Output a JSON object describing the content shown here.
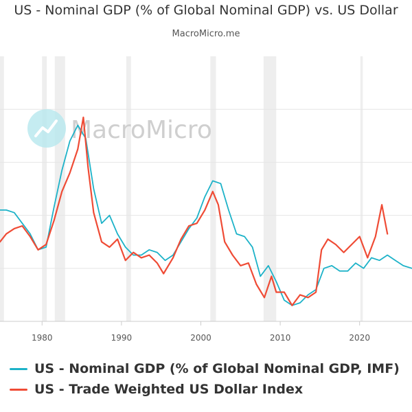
{
  "header": {
    "title": "US - Nominal GDP (% of Global Nominal GDP) vs. US Dollar",
    "subtitle": "MacroMicro.me"
  },
  "watermark": {
    "text": "MacroMicro"
  },
  "legend": {
    "items": [
      {
        "label": "US - Nominal GDP (% of Global Nominal GDP, IMF)",
        "color": "#1cb2c8"
      },
      {
        "label": "US - Trade Weighted US Dollar Index",
        "color": "#ef4b35"
      }
    ]
  },
  "chart_data": {
    "type": "line",
    "title": "US - Nominal GDP (% of Global Nominal GDP) vs. US Dollar",
    "x_ticks": [
      1980,
      1990,
      2000,
      2010,
      2020
    ],
    "x_range": [
      1974.7,
      2026.6
    ],
    "y_range": [
      0,
      1
    ],
    "y_axis_labels_visible": false,
    "grid": true,
    "legend_position": "bottom",
    "recession_shading": [
      [
        1973.9,
        1975.2
      ],
      [
        1980.0,
        1980.6
      ],
      [
        1981.6,
        1982.9
      ],
      [
        1990.6,
        1991.2
      ],
      [
        2001.2,
        2001.9
      ],
      [
        2007.9,
        2009.5
      ],
      [
        2020.1,
        2020.4
      ]
    ],
    "series": [
      {
        "name": "US - Nominal GDP (% of Global Nominal GDP, IMF)",
        "color": "#1cb2c8",
        "x": [
          1974.7,
          1975.5,
          1976.5,
          1977.5,
          1978.5,
          1979.5,
          1980.5,
          1981.5,
          1982.5,
          1983.5,
          1984.5,
          1985.5,
          1986.5,
          1987.5,
          1988.5,
          1989.5,
          1990.5,
          1991.5,
          1992.5,
          1993.5,
          1994.5,
          1995.5,
          1996.5,
          1997.5,
          1998.5,
          1999.5,
          2000.5,
          2001.5,
          2002.5,
          2003.5,
          2004.5,
          2005.5,
          2006.5,
          2007.5,
          2008.5,
          2009.5,
          2010.5,
          2011.5,
          2012.5,
          2013.5,
          2014.5,
          2015.5,
          2016.5,
          2017.5,
          2018.5,
          2019.5,
          2020.5,
          2021.5,
          2022.5,
          2023.5,
          2024.5,
          2025.5,
          2026.6
        ],
        "values": [
          0.42,
          0.42,
          0.41,
          0.37,
          0.33,
          0.27,
          0.28,
          0.43,
          0.57,
          0.68,
          0.74,
          0.69,
          0.5,
          0.37,
          0.4,
          0.33,
          0.28,
          0.25,
          0.25,
          0.27,
          0.26,
          0.23,
          0.25,
          0.3,
          0.35,
          0.39,
          0.47,
          0.53,
          0.52,
          0.42,
          0.33,
          0.32,
          0.28,
          0.17,
          0.21,
          0.15,
          0.08,
          0.06,
          0.07,
          0.1,
          0.12,
          0.2,
          0.21,
          0.19,
          0.19,
          0.22,
          0.2,
          0.24,
          0.23,
          0.25,
          0.23,
          0.21,
          0.2
        ]
      },
      {
        "name": "US - Trade Weighted US Dollar Index",
        "color": "#ef4b35",
        "x": [
          1974.7,
          1975.5,
          1976.5,
          1977.5,
          1978.5,
          1979.5,
          1980.5,
          1981.5,
          1982.5,
          1983.5,
          1984.5,
          1985.2,
          1985.8,
          1986.5,
          1987.5,
          1988.5,
          1989.5,
          1990.5,
          1991.5,
          1992.5,
          1993.5,
          1994.5,
          1995.3,
          1996.5,
          1997.5,
          1998.5,
          1999.5,
          2000.5,
          2001.5,
          2002.2,
          2003.0,
          2004.0,
          2005.0,
          2006.0,
          2007.0,
          2008.0,
          2008.9,
          2009.5,
          2010.5,
          2011.5,
          2012.5,
          2013.5,
          2014.5,
          2015.2,
          2016.0,
          2017.0,
          2018.0,
          2019.0,
          2020.0,
          2021.0,
          2022.0,
          2022.8,
          2023.5
        ],
        "values": [
          0.3,
          0.33,
          0.35,
          0.36,
          0.32,
          0.27,
          0.29,
          0.38,
          0.49,
          0.56,
          0.65,
          0.77,
          0.58,
          0.41,
          0.3,
          0.28,
          0.31,
          0.23,
          0.26,
          0.24,
          0.25,
          0.22,
          0.18,
          0.24,
          0.31,
          0.36,
          0.37,
          0.42,
          0.49,
          0.44,
          0.3,
          0.25,
          0.21,
          0.22,
          0.14,
          0.09,
          0.17,
          0.11,
          0.11,
          0.06,
          0.1,
          0.09,
          0.11,
          0.27,
          0.31,
          0.29,
          0.26,
          0.29,
          0.32,
          0.24,
          0.32,
          0.44,
          0.33
        ]
      }
    ]
  }
}
